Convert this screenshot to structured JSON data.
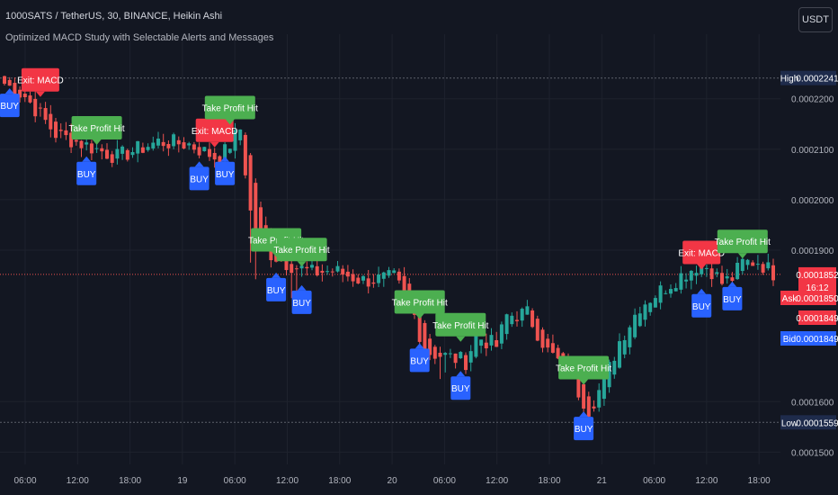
{
  "header": {
    "title": "1000SATS / TetherUS, 30, BINANCE, Heikin Ashi",
    "subtitle": "Optimized MACD Study with Selectable Alerts and Messages",
    "currency_button": "USDT"
  },
  "colors": {
    "background": "#131722",
    "grid": "#1e222d",
    "up": "#26a69a",
    "down": "#ef5350",
    "buy_label": "#2962ff",
    "tp_label": "#4caf50",
    "exit_label": "#f23645",
    "axis_text": "#b2b5be",
    "high_low_tag": "#1e2b4b",
    "ask_tag": "#f23645",
    "bid_tag": "#2962ff"
  },
  "chart_data": {
    "type": "candlestick",
    "title": "1000SATS / TetherUS, 30, BINANCE, Heikin Ashi",
    "y_axis": {
      "ticks": [
        "0.0002200",
        "0.0002100",
        "0.0002000",
        "0.0001900",
        "0.0001600",
        "0.0001500"
      ],
      "range": [
        0.000149,
        0.000231
      ]
    },
    "x_axis": {
      "ticks": [
        "06:00",
        "12:00",
        "18:00",
        "19",
        "06:00",
        "12:00",
        "18:00",
        "20",
        "06:00",
        "12:00",
        "18:00",
        "21",
        "06:00",
        "12:00",
        "18:00"
      ]
    },
    "price_levels": {
      "high": {
        "label": "High",
        "value": "0.0002241"
      },
      "low": {
        "label": "Low",
        "value": "0.0001559"
      },
      "last": {
        "value": "0.0001852",
        "countdown": "16:12"
      },
      "ask": {
        "label": "Ask",
        "value": "0.0001850"
      },
      "mid": {
        "value": "0.0001849"
      },
      "bid": {
        "label": "Bid",
        "value": "0.0001849"
      }
    },
    "price_path": [
      [
        0,
        0.000223
      ],
      [
        4,
        0.0002205
      ],
      [
        10,
        0.000213
      ],
      [
        18,
        0.00021
      ],
      [
        22,
        0.0002085
      ],
      [
        30,
        0.0002115
      ],
      [
        36,
        0.000211
      ],
      [
        40,
        0.000209
      ],
      [
        42,
        0.000208
      ],
      [
        44,
        0.000211
      ],
      [
        46,
        0.000214
      ],
      [
        48,
        0.0001975
      ],
      [
        50,
        0.0001905
      ],
      [
        55,
        0.0001875
      ],
      [
        60,
        0.0001855
      ],
      [
        64,
        0.000186
      ],
      [
        70,
        0.000184
      ],
      [
        76,
        0.0001845
      ],
      [
        78,
        0.000181
      ],
      [
        80,
        0.000177
      ],
      [
        82,
        0.00017
      ],
      [
        86,
        0.000169
      ],
      [
        90,
        0.000168
      ],
      [
        92,
        0.000173
      ],
      [
        96,
        0.000171
      ],
      [
        98,
        0.000177
      ],
      [
        102,
        0.0001775
      ],
      [
        106,
        0.00017
      ],
      [
        110,
        0.000166
      ],
      [
        112,
        0.000162
      ],
      [
        114,
        0.0001585
      ],
      [
        117,
        0.000164
      ],
      [
        120,
        0.000172
      ],
      [
        124,
        0.000179
      ],
      [
        128,
        0.000182
      ],
      [
        132,
        0.000185
      ],
      [
        136,
        0.0001875
      ],
      [
        138,
        0.000186
      ],
      [
        140,
        0.0001835
      ],
      [
        142,
        0.0001845
      ],
      [
        144,
        0.0001875
      ],
      [
        147,
        0.0001878
      ],
      [
        150,
        0.0001855
      ]
    ],
    "signals": [
      {
        "type": "buy",
        "text": "BUY",
        "bar": 1,
        "price": 0.0002235
      },
      {
        "type": "exit",
        "text": "Exit: MACD",
        "bar": 7,
        "price": 0.00022
      },
      {
        "type": "buy",
        "text": "BUY",
        "bar": 16,
        "price": 0.00021
      },
      {
        "type": "tp",
        "text": "Take Profit Hit",
        "bar": 18,
        "price": 0.0002105
      },
      {
        "type": "exit",
        "text": "Exit: MACD",
        "bar": 41,
        "price": 0.00021
      },
      {
        "type": "buy",
        "text": "BUY",
        "bar": 38,
        "price": 0.000209
      },
      {
        "type": "buy",
        "text": "BUY",
        "bar": 43,
        "price": 0.00021
      },
      {
        "type": "tp",
        "text": "Take Profit Hit",
        "bar": 44,
        "price": 0.0002145
      },
      {
        "type": "tp",
        "text": "Take Profit Hit",
        "bar": 53,
        "price": 0.0001883
      },
      {
        "type": "buy",
        "text": "BUY",
        "bar": 53,
        "price": 0.000187
      },
      {
        "type": "tp",
        "text": "Take Profit Hit",
        "bar": 58,
        "price": 0.0001864
      },
      {
        "type": "buy",
        "text": "BUY",
        "bar": 58,
        "price": 0.0001845
      },
      {
        "type": "tp",
        "text": "Take Profit Hit",
        "bar": 81,
        "price": 0.000176
      },
      {
        "type": "buy",
        "text": "BUY",
        "bar": 81,
        "price": 0.000173
      },
      {
        "type": "tp",
        "text": "Take Profit Hit",
        "bar": 89,
        "price": 0.0001715
      },
      {
        "type": "buy",
        "text": "BUY",
        "bar": 89,
        "price": 0.0001675
      },
      {
        "type": "tp",
        "text": "Take Profit Hit",
        "bar": 113,
        "price": 0.000163
      },
      {
        "type": "buy",
        "text": "BUY",
        "bar": 113,
        "price": 0.0001595
      },
      {
        "type": "exit",
        "text": "Exit: MACD",
        "bar": 136,
        "price": 0.0001858
      },
      {
        "type": "buy",
        "text": "BUY",
        "bar": 136,
        "price": 0.0001838
      },
      {
        "type": "tp",
        "text": "Take Profit Hit",
        "bar": 144,
        "price": 0.000188
      },
      {
        "type": "buy",
        "text": "BUY",
        "bar": 142,
        "price": 0.0001852
      }
    ]
  }
}
